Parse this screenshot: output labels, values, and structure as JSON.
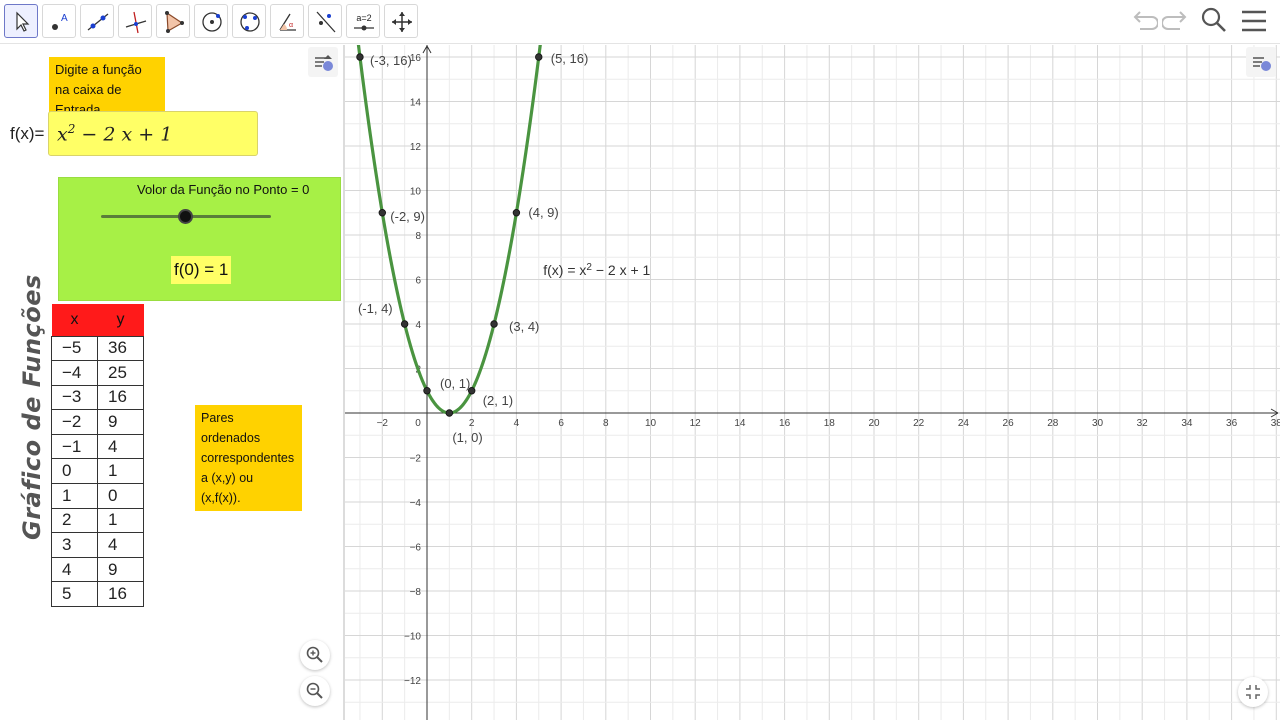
{
  "toolbar": {
    "tools": [
      "move-tool",
      "point-tool",
      "line-tool",
      "perpendicular-line-tool",
      "polygon-tool",
      "circle-tool",
      "conic-tool",
      "angle-tool",
      "reflect-tool",
      "slider-tool",
      "move-graphics-view-tool"
    ],
    "slider_tool_text": "a=2",
    "right_icons": [
      "undo-icon",
      "redo-icon",
      "search-icon",
      "menu-icon"
    ]
  },
  "algebra": {
    "note_input": "Digite a função na caixa de Entrada.",
    "fx_label": "f(x)=",
    "fx_input_base": "x",
    "fx_input_exp": "2",
    "fx_input_rest": " − 2 x + 1",
    "slider_caption": "Volor da Função no Ponto = 0",
    "slider_value": 0,
    "f_at_point": "f(0) = 1",
    "vertical_title": "Gráfico de Funções",
    "note_pairs": "Pares ordenados correspondentes a (x,y) ou (x,f(x)).",
    "table": {
      "headers": [
        "x",
        "y"
      ],
      "rows": [
        [
          "−5",
          "36"
        ],
        [
          "−4",
          "25"
        ],
        [
          "−3",
          "16"
        ],
        [
          "−2",
          "9"
        ],
        [
          "−1",
          "4"
        ],
        [
          "0",
          "1"
        ],
        [
          "1",
          "0"
        ],
        [
          "2",
          "1"
        ],
        [
          "3",
          "4"
        ],
        [
          "4",
          "9"
        ],
        [
          "5",
          "16"
        ]
      ]
    }
  },
  "graph": {
    "function_label": "f(x)  =  x",
    "function_label_exp": "2",
    "function_label_rest": " − 2 x + 1",
    "curve_color": "#4a9440",
    "x_ticks": [
      "−2",
      "0",
      "2",
      "4",
      "6",
      "8",
      "10",
      "12",
      "14",
      "16",
      "18",
      "20",
      "22",
      "24",
      "26",
      "28",
      "30",
      "32",
      "34",
      "36",
      "38"
    ],
    "y_ticks": [
      "16",
      "14",
      "12",
      "10",
      "8",
      "6",
      "4",
      "2",
      "−2",
      "−4",
      "−6",
      "−8",
      "−10",
      "−12"
    ],
    "points": [
      {
        "label": "(-3, 16)",
        "x": -3,
        "y": 16
      },
      {
        "label": "(-2, 9)",
        "x": -2,
        "y": 9
      },
      {
        "label": "(-1, 4)",
        "x": -1,
        "y": 4
      },
      {
        "label": "(0, 1)",
        "x": 0,
        "y": 1
      },
      {
        "label": "(1, 0)",
        "x": 1,
        "y": 0
      },
      {
        "label": "(2, 1)",
        "x": 2,
        "y": 1
      },
      {
        "label": "(3, 4)",
        "x": 3,
        "y": 4
      },
      {
        "label": "(4, 9)",
        "x": 4,
        "y": 9
      },
      {
        "label": "(5, 16)",
        "x": 5,
        "y": 16
      }
    ]
  }
}
